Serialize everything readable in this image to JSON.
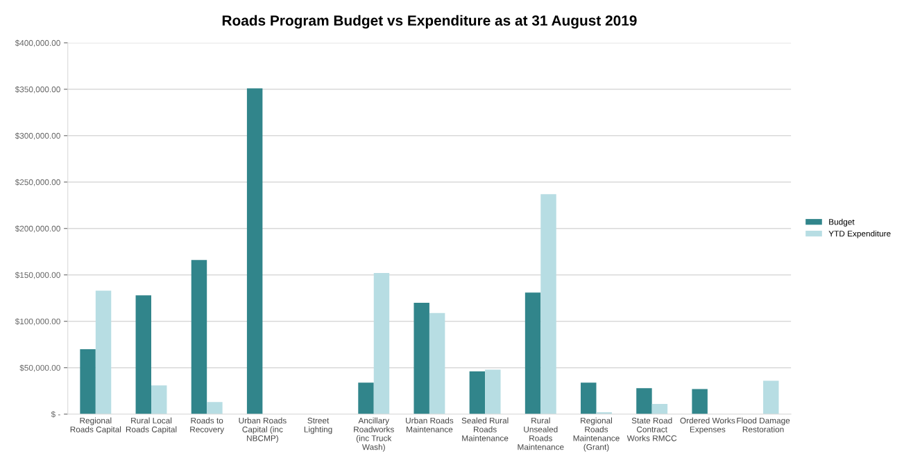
{
  "chart_data": {
    "type": "bar",
    "title": "Roads Program Budget vs Expenditure as at 31 August 2019",
    "categories": [
      "Regional Roads Capital",
      "Rural Local Roads Capital",
      "Roads to Recovery",
      "Urban Roads Capital (inc NBCMP)",
      "Street Lighting",
      "Ancillary Roadworks (inc Truck Wash)",
      "Urban Roads Maintenance",
      "Sealed Rural Roads Maintenance",
      "Rural Unsealed Roads Maintenance",
      "Regional Roads Maintenance (Grant)",
      "State Road Contract Works RMCC",
      "Ordered Works Expenses",
      "Flood Damage Restoration"
    ],
    "series": [
      {
        "name": "Budget",
        "color": "#31858b",
        "values": [
          70000,
          128000,
          166000,
          351000,
          0,
          34000,
          120000,
          46000,
          131000,
          34000,
          28000,
          27000,
          0
        ]
      },
      {
        "name": "YTD Expenditure",
        "color": "#b7dde3",
        "values": [
          133000,
          31000,
          13000,
          0,
          0,
          152000,
          109000,
          48000,
          237000,
          2000,
          11000,
          0,
          36000
        ]
      }
    ],
    "ylim": [
      0,
      400000
    ],
    "yticks": [
      {
        "value": 0,
        "label": "$ -"
      },
      {
        "value": 50000,
        "label": "$50,000.00"
      },
      {
        "value": 100000,
        "label": "$100,000.00"
      },
      {
        "value": 150000,
        "label": "$150,000.00"
      },
      {
        "value": 200000,
        "label": "$200,000.00"
      },
      {
        "value": 250000,
        "label": "$250,000.00"
      },
      {
        "value": 300000,
        "label": "$300,000.00"
      },
      {
        "value": 350000,
        "label": "$350,000.00"
      },
      {
        "value": 400000,
        "label": "$400,000.00"
      }
    ],
    "grid": "y",
    "legend": "right"
  }
}
